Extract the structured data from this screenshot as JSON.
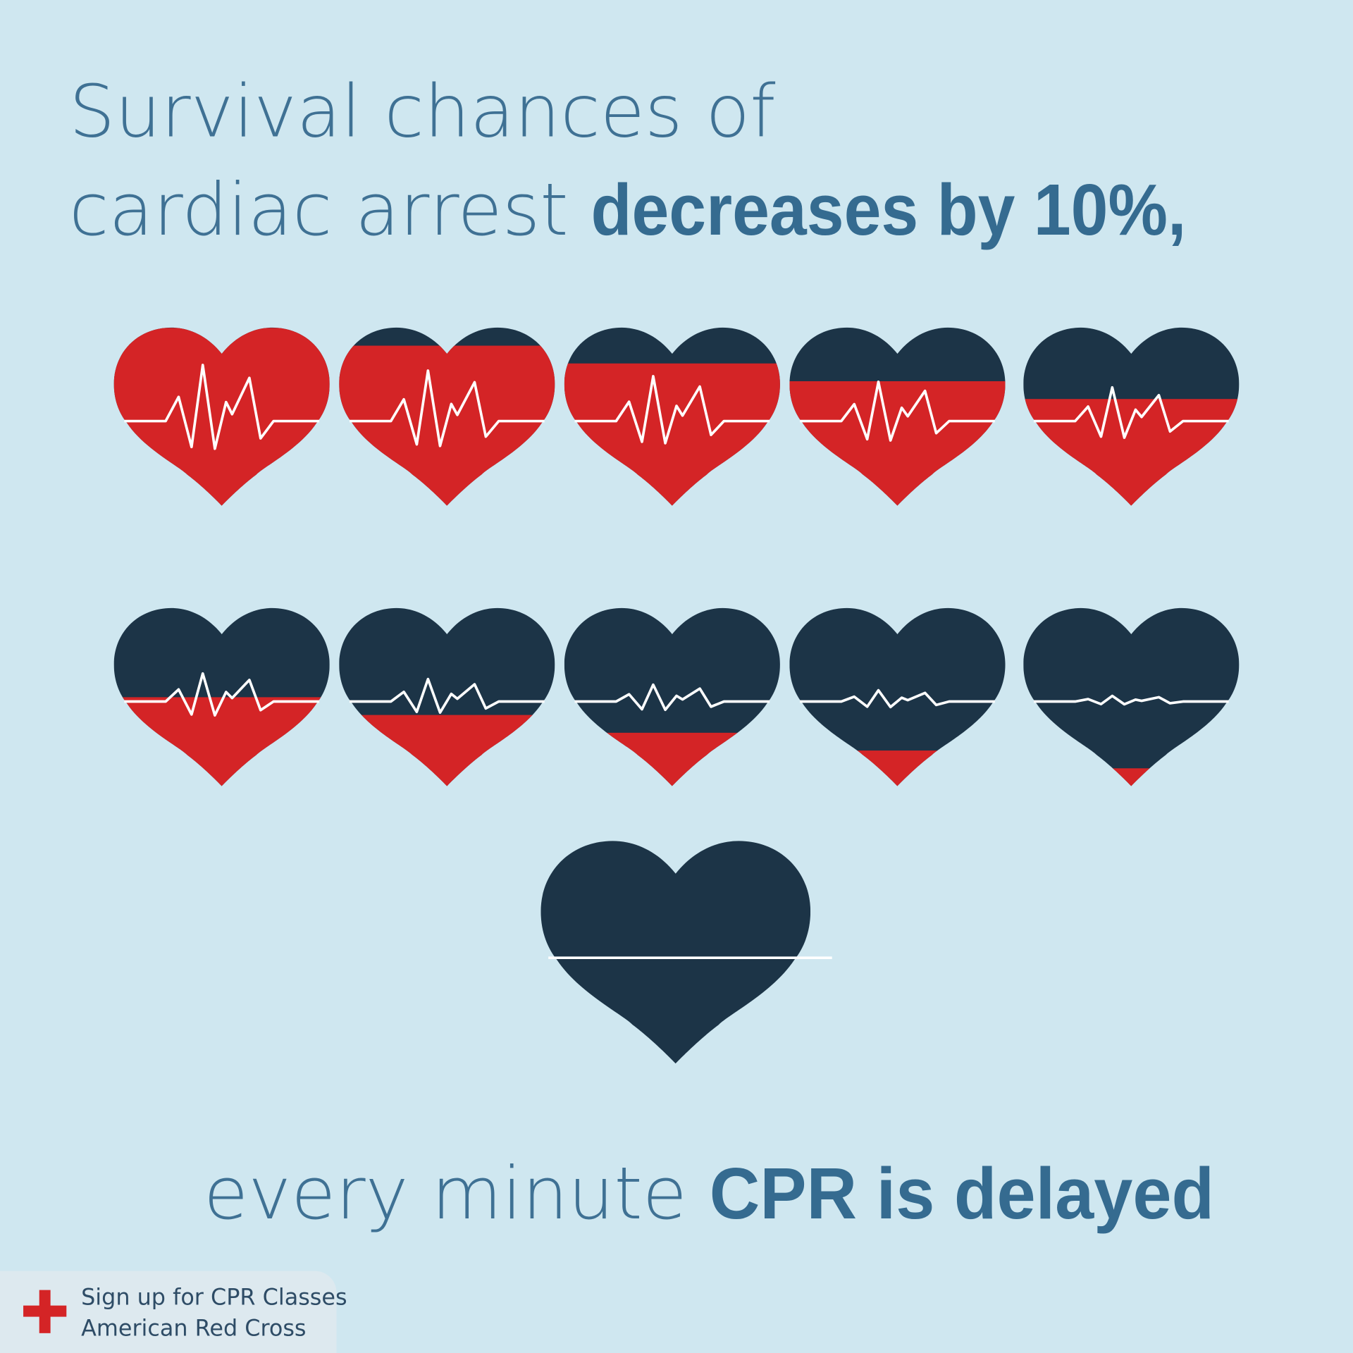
{
  "title": {
    "line1": "Survival chances of",
    "line2": "cardiac arrest",
    "line2_bold": "decreases by 10%,"
  },
  "hearts": [
    100,
    90,
    80,
    70,
    60,
    50,
    40,
    30,
    20,
    10,
    0
  ],
  "caption": {
    "text": "every minute",
    "bold": "CPR is delayed"
  },
  "footer": {
    "line1": "Sign up for CPR Classes",
    "line2": "American Red Cross"
  }
}
